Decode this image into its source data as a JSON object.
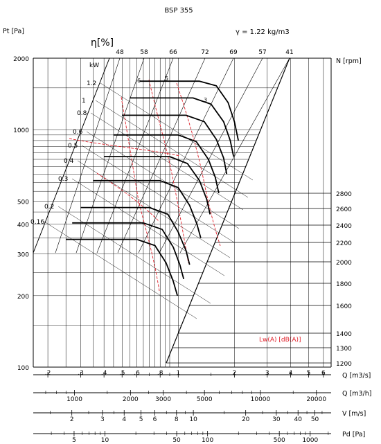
{
  "chart_data": {
    "type": "line",
    "title": "BSP 355",
    "density_label": "γ = 1.22 kg/m3",
    "ylabel": "Pt [Pa]",
    "eta_label": "η[%]",
    "kw_label": "kW",
    "rpm_label": "N [rpm]",
    "lw_label": "Lw(A) [dB(A)]",
    "y_scale": "log",
    "ylim": [
      100,
      2000
    ],
    "y_ticks": [
      "2000",
      "1000",
      "500",
      "400",
      "300",
      "200",
      "100"
    ],
    "y_tick_values": [
      2000,
      1000,
      500,
      400,
      300,
      200,
      100
    ],
    "x_scale": "log",
    "xlim": [
      0.167,
      6.6
    ],
    "efficiency_labels": [
      "48",
      "58",
      "66",
      "72",
      "69",
      "57",
      "41"
    ],
    "kw_labels": [
      "1.2",
      "1",
      "0.8",
      "0.6",
      "0.5",
      "0.4",
      "0.3",
      "0.2",
      "0.16"
    ],
    "kw_values": [
      1.2,
      1,
      0.8,
      0.6,
      0.5,
      0.4,
      0.3,
      0.2,
      0.16
    ],
    "rpm_labels": [
      "2800",
      "2600",
      "2400",
      "2200",
      "2000",
      "1800",
      "1600",
      "1400",
      "1300",
      "1200"
    ],
    "rpm_values": [
      2800,
      2600,
      2400,
      2200,
      2000,
      1800,
      1600,
      1400,
      1300,
      1200
    ],
    "small_curve_labels": [
      "6",
      "5",
      "3"
    ],
    "series": [
      {
        "rpm": 2600,
        "points": [
          [
            0.62,
            1600
          ],
          [
            0.9,
            1600
          ],
          [
            1.3,
            1600
          ],
          [
            1.6,
            1530
          ],
          [
            1.85,
            1300
          ],
          [
            2.0,
            1080
          ],
          [
            2.1,
            900
          ]
        ]
      },
      {
        "rpm": 2400,
        "points": [
          [
            0.55,
            1360
          ],
          [
            0.85,
            1360
          ],
          [
            1.2,
            1360
          ],
          [
            1.5,
            1280
          ],
          [
            1.75,
            1080
          ],
          [
            1.9,
            900
          ],
          [
            1.98,
            770
          ]
        ]
      },
      {
        "rpm": 2200,
        "points": [
          [
            0.5,
            1150
          ],
          [
            0.8,
            1150
          ],
          [
            1.1,
            1150
          ],
          [
            1.38,
            1080
          ],
          [
            1.6,
            910
          ],
          [
            1.75,
            760
          ],
          [
            1.82,
            650
          ]
        ]
      },
      {
        "rpm": 2000,
        "points": [
          [
            0.45,
            950
          ],
          [
            0.72,
            950
          ],
          [
            1.0,
            950
          ],
          [
            1.25,
            890
          ],
          [
            1.45,
            750
          ],
          [
            1.58,
            630
          ],
          [
            1.65,
            540
          ]
        ]
      },
      {
        "rpm": 1800,
        "points": [
          [
            0.4,
            770
          ],
          [
            0.65,
            770
          ],
          [
            0.9,
            770
          ],
          [
            1.12,
            720
          ],
          [
            1.3,
            610
          ],
          [
            1.42,
            510
          ],
          [
            1.48,
            440
          ]
        ]
      },
      {
        "rpm": 1600,
        "points": [
          [
            0.35,
            610
          ],
          [
            0.58,
            610
          ],
          [
            0.8,
            610
          ],
          [
            1.0,
            570
          ],
          [
            1.15,
            480
          ],
          [
            1.26,
            400
          ],
          [
            1.32,
            350
          ]
        ]
      },
      {
        "rpm": 1400,
        "points": [
          [
            0.3,
            470
          ],
          [
            0.5,
            470
          ],
          [
            0.7,
            470
          ],
          [
            0.88,
            440
          ],
          [
            1.0,
            370
          ],
          [
            1.1,
            310
          ],
          [
            1.15,
            270
          ]
        ]
      },
      {
        "rpm": 1300,
        "points": [
          [
            0.27,
            405
          ],
          [
            0.46,
            405
          ],
          [
            0.65,
            405
          ],
          [
            0.82,
            380
          ],
          [
            0.94,
            320
          ],
          [
            1.02,
            270
          ],
          [
            1.07,
            235
          ]
        ]
      },
      {
        "rpm": 1200,
        "points": [
          [
            0.25,
            345
          ],
          [
            0.42,
            345
          ],
          [
            0.6,
            345
          ],
          [
            0.75,
            325
          ],
          [
            0.86,
            275
          ],
          [
            0.94,
            230
          ],
          [
            0.99,
            200
          ]
        ]
      }
    ],
    "x_axes": [
      {
        "label": "Q [m3/s]",
        "ticks": [
          ".2",
          ".3",
          ".4",
          ".5",
          ".6",
          ".8",
          "1",
          "2",
          "3",
          "4",
          "5",
          "6"
        ],
        "values": [
          0.2,
          0.3,
          0.4,
          0.5,
          0.6,
          0.8,
          1,
          2,
          3,
          4,
          5,
          6
        ],
        "minor": [
          0.7,
          0.9,
          1.5
        ]
      },
      {
        "label": "Q [m3/h]",
        "ticks": [
          "1000",
          "2000",
          "3000",
          "5000",
          "10000",
          "20000"
        ],
        "values": [
          1000,
          2000,
          3000,
          5000,
          10000,
          20000
        ],
        "minor": [
          700,
          800,
          900,
          1500,
          2500,
          4000,
          6000,
          7000,
          8000,
          9000,
          15000
        ]
      },
      {
        "label": "V [m/s]",
        "ticks": [
          "2",
          "3",
          "4",
          "5",
          "6",
          "8",
          "10",
          "20",
          "30",
          "40",
          "50"
        ],
        "values": [
          2,
          3,
          4,
          5,
          6,
          8,
          10,
          20,
          30,
          40,
          50
        ],
        "minor": [
          1.5,
          2.5,
          3.5,
          7,
          9,
          15,
          25,
          35,
          45,
          55
        ]
      },
      {
        "label": "Pd [Pa]",
        "ticks": [
          "5",
          "10",
          "50",
          "100",
          "500",
          "1000"
        ],
        "values": [
          5,
          10,
          50,
          100,
          500,
          1000
        ],
        "minor": [
          3,
          4,
          6,
          7,
          8,
          9,
          20,
          30,
          40,
          60,
          70,
          80,
          90,
          200,
          300,
          400,
          600,
          700,
          800,
          900,
          1500
        ]
      }
    ],
    "grid": true
  }
}
